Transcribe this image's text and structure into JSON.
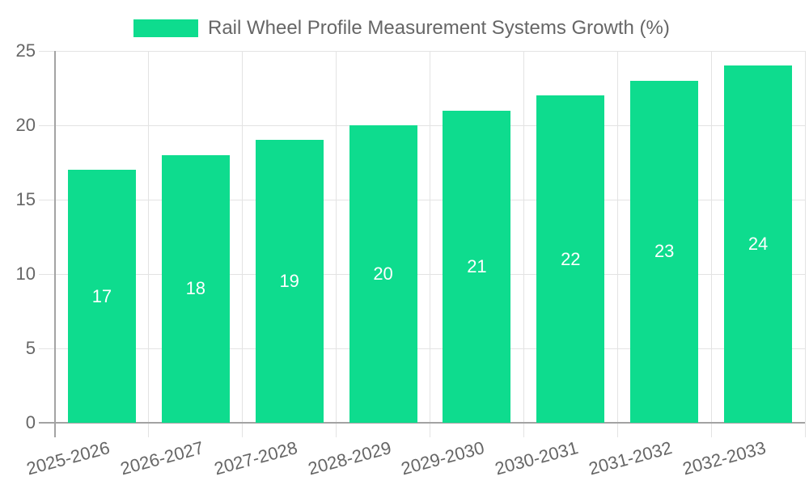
{
  "legend": {
    "label": "Rail Wheel Profile Measurement Systems Growth (%)",
    "swatch_color": "#0EDC8E"
  },
  "colors": {
    "bar": "#0EDC8E",
    "grid": "#e3e3e3",
    "axis": "#a3a3a3",
    "tick_label": "#666666",
    "value_label": "#ffffff",
    "background": "#ffffff"
  },
  "chart_data": {
    "type": "bar",
    "title": "Rail Wheel Profile Measurement Systems Growth (%)",
    "categories": [
      "2025-2026",
      "2026-2027",
      "2027-2028",
      "2028-2029",
      "2029-2030",
      "2030-2031",
      "2031-2032",
      "2032-2033"
    ],
    "values": [
      17,
      18,
      19,
      20,
      21,
      22,
      23,
      24
    ],
    "xlabel": "",
    "ylabel": "",
    "ylim": [
      0,
      25
    ],
    "yticks": [
      0,
      5,
      10,
      15,
      20,
      25
    ],
    "grid": true,
    "legend_position": "top",
    "bar_color": "#0EDC8E",
    "value_label_position": "inside-center",
    "x_tick_rotation_deg": -15
  }
}
